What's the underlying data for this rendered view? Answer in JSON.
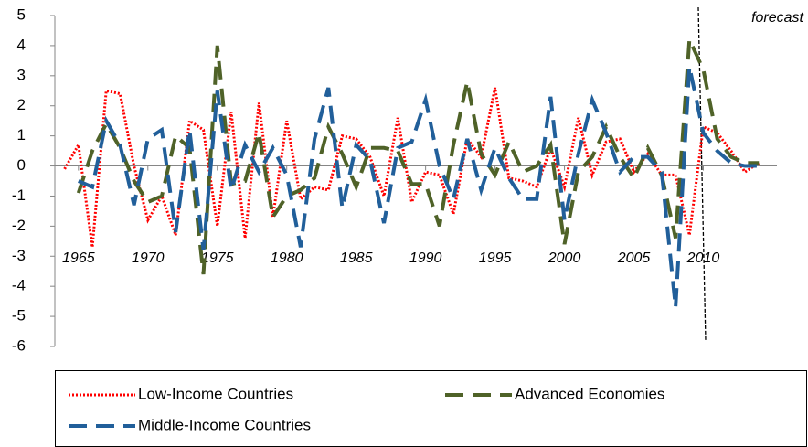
{
  "chart_data": {
    "type": "line",
    "annotation": "forecast",
    "x": [
      1964,
      1965,
      1966,
      1967,
      1968,
      1969,
      1970,
      1971,
      1972,
      1973,
      1974,
      1975,
      1976,
      1977,
      1978,
      1979,
      1980,
      1981,
      1982,
      1983,
      1984,
      1985,
      1986,
      1987,
      1988,
      1989,
      1990,
      1991,
      1992,
      1993,
      1994,
      1995,
      1996,
      1997,
      1998,
      1999,
      2000,
      2001,
      2002,
      2003,
      2004,
      2005,
      2006,
      2007,
      2008,
      2009,
      2010,
      2011,
      2012,
      2013,
      2014
    ],
    "xlim": [
      1963.3,
      2015.3
    ],
    "xticks": [
      1965,
      1970,
      1975,
      1980,
      1985,
      1990,
      1995,
      2000,
      2005,
      2010
    ],
    "ylim": [
      -6,
      5
    ],
    "yticks": [
      -6,
      -5,
      -4,
      -3,
      -2,
      -1,
      0,
      1,
      2,
      3,
      4,
      5
    ],
    "series": [
      {
        "name": "Low-Income Countries",
        "color": "#ff0000",
        "dash": "dotted",
        "values": [
          -0.1,
          0.7,
          -2.7,
          2.5,
          2.4,
          0.0,
          -1.8,
          -1.0,
          -2.3,
          1.5,
          1.2,
          -2.0,
          1.8,
          -2.4,
          2.1,
          -1.7,
          1.5,
          -1.1,
          -0.7,
          -0.8,
          1.0,
          0.9,
          0.3,
          -1.0,
          1.6,
          -1.2,
          -0.2,
          -0.3,
          -1.6,
          0.9,
          0.3,
          2.6,
          -0.4,
          -0.5,
          -0.7,
          0.6,
          -0.7,
          1.6,
          -0.3,
          0.8,
          0.9,
          -0.2,
          0.4,
          -0.3,
          -0.3,
          -2.3,
          1.3,
          1.1,
          0.5,
          -0.2,
          0.1
        ]
      },
      {
        "name": "Advanced Economies",
        "color": "#4f6228",
        "dash": "dashed",
        "values": [
          null,
          -0.9,
          0.5,
          1.4,
          0.6,
          -0.5,
          -1.2,
          -1.0,
          1.0,
          0.6,
          -3.6,
          4.0,
          -0.6,
          -0.5,
          1.1,
          -1.7,
          -1.0,
          -0.8,
          -0.4,
          1.3,
          0.4,
          -0.7,
          0.6,
          0.6,
          0.5,
          -0.6,
          -0.6,
          -2.0,
          0.7,
          2.8,
          0.4,
          -0.3,
          0.8,
          -0.2,
          0.0,
          0.7,
          -2.6,
          -0.2,
          0.3,
          1.3,
          0.3,
          -0.4,
          0.6,
          -0.3,
          -2.4,
          4.2,
          3.2,
          0.9,
          0.3,
          0.1,
          0.1
        ]
      },
      {
        "name": "Middle-Income Countries",
        "color": "#215f9a",
        "dash": "dashed",
        "values": [
          null,
          -0.5,
          -0.7,
          1.5,
          0.7,
          -1.3,
          0.9,
          1.2,
          -2.2,
          1.2,
          -2.8,
          2.5,
          -0.8,
          0.7,
          -0.2,
          0.6,
          -0.3,
          -2.7,
          0.9,
          2.6,
          -1.4,
          0.7,
          0.2,
          -1.9,
          0.6,
          0.8,
          2.2,
          0.0,
          -1.1,
          0.9,
          -0.8,
          0.6,
          -0.4,
          -1.1,
          -1.1,
          2.3,
          -1.8,
          0.4,
          2.2,
          1.1,
          -0.2,
          0.3,
          0.3,
          -0.2,
          -4.7,
          3.3,
          1.1,
          0.5,
          0.1,
          0.0,
          0.0
        ]
      }
    ]
  }
}
